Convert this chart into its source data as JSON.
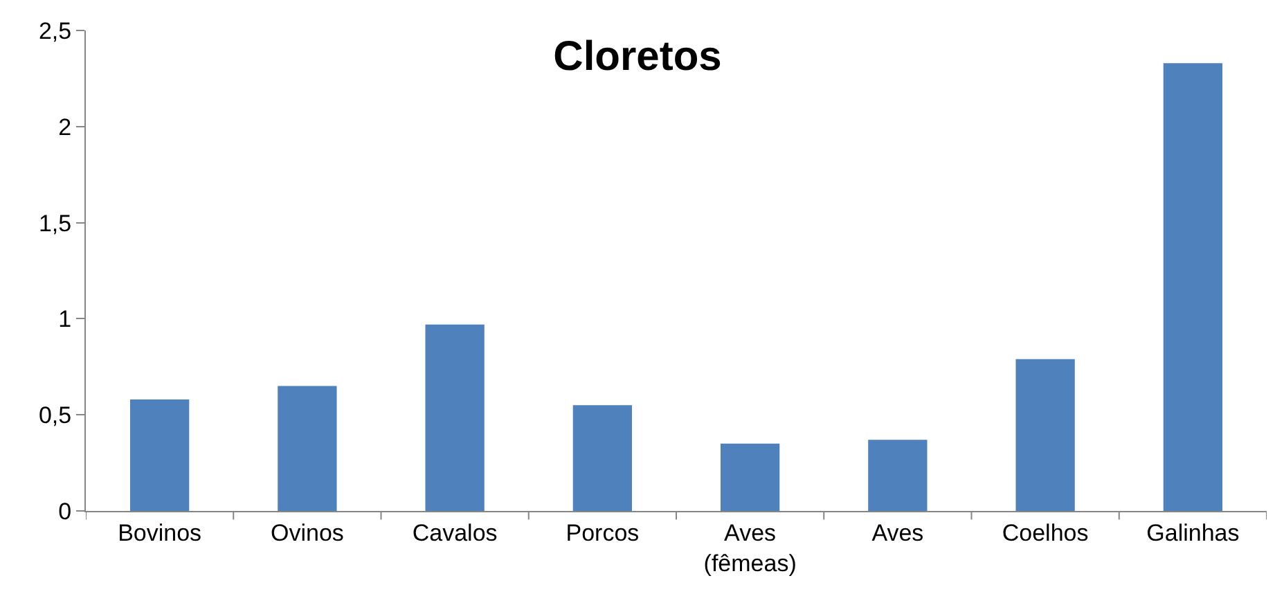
{
  "chart_data": {
    "type": "bar",
    "title": "Cloretos",
    "categories": [
      "Bovinos",
      "Ovinos",
      "Cavalos",
      "Porcos",
      "Aves (fêmeas)",
      "Aves",
      "Coelhos",
      "Galinhas"
    ],
    "values": [
      0.58,
      0.65,
      0.97,
      0.55,
      0.35,
      0.37,
      0.79,
      2.33
    ],
    "color": "#4f81bd",
    "ylim": [
      0,
      2.5
    ],
    "yticks": [
      0,
      {
        "value": 0.5,
        "label": "0,5"
      },
      1,
      {
        "value": 1.5,
        "label": "1,5"
      },
      2,
      {
        "value": 2.5,
        "label": "2,5"
      }
    ],
    "grid": false,
    "legend": false
  }
}
